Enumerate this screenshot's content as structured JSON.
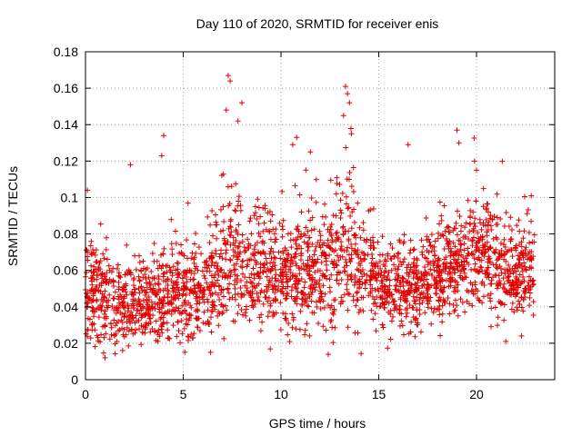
{
  "chart_data": {
    "type": "scatter",
    "title": "Day 110 of 2020, SRMTID for receiver enis",
    "xlabel": "GPS time / hours",
    "ylabel": "SRMTID / TECUs",
    "xlim": [
      0,
      24
    ],
    "ylim": [
      0,
      0.18
    ],
    "xticks": [
      "0",
      "5",
      "10",
      "15",
      "20"
    ],
    "xtick_values": [
      0,
      5,
      10,
      15,
      20
    ],
    "yticks": [
      "0",
      "0.02",
      "0.04",
      "0.06",
      "0.08",
      "0.1",
      "0.12",
      "0.14",
      "0.16",
      "0.18"
    ],
    "ytick_values": [
      0,
      0.02,
      0.04,
      0.06,
      0.08,
      0.1,
      0.12,
      0.14,
      0.16,
      0.18
    ],
    "grid": true,
    "marker": "+",
    "color": "#e00000",
    "x_data_range": [
      0,
      23
    ],
    "series": [
      {
        "name": "SRMTID",
        "envelope_hours": [
          0,
          1,
          2,
          3,
          4,
          5,
          6,
          7,
          7.5,
          8,
          9,
          10,
          11,
          12,
          13,
          13.5,
          14,
          15,
          16,
          17,
          18,
          19,
          20,
          21,
          22,
          23
        ],
        "typical_level": [
          0.05,
          0.045,
          0.04,
          0.042,
          0.045,
          0.045,
          0.05,
          0.06,
          0.065,
          0.06,
          0.062,
          0.055,
          0.058,
          0.06,
          0.065,
          0.07,
          0.06,
          0.055,
          0.05,
          0.052,
          0.058,
          0.06,
          0.07,
          0.06,
          0.055,
          0.065
        ],
        "spread": [
          0.02,
          0.02,
          0.018,
          0.018,
          0.02,
          0.02,
          0.02,
          0.025,
          0.03,
          0.025,
          0.022,
          0.022,
          0.025,
          0.025,
          0.03,
          0.035,
          0.025,
          0.022,
          0.02,
          0.02,
          0.022,
          0.022,
          0.022,
          0.025,
          0.02,
          0.02
        ],
        "peaks": [
          {
            "x": 0.1,
            "y": 0.104
          },
          {
            "x": 2.3,
            "y": 0.118
          },
          {
            "x": 4.0,
            "y": 0.134
          },
          {
            "x": 3.9,
            "y": 0.123
          },
          {
            "x": 7.3,
            "y": 0.167
          },
          {
            "x": 7.4,
            "y": 0.164
          },
          {
            "x": 7.2,
            "y": 0.148
          },
          {
            "x": 8.0,
            "y": 0.152
          },
          {
            "x": 7.8,
            "y": 0.142
          },
          {
            "x": 10.8,
            "y": 0.133
          },
          {
            "x": 10.6,
            "y": 0.129
          },
          {
            "x": 11.5,
            "y": 0.125
          },
          {
            "x": 13.3,
            "y": 0.161
          },
          {
            "x": 13.4,
            "y": 0.157
          },
          {
            "x": 13.5,
            "y": 0.152
          },
          {
            "x": 13.2,
            "y": 0.145
          },
          {
            "x": 13.6,
            "y": 0.135
          },
          {
            "x": 16.5,
            "y": 0.129
          },
          {
            "x": 19.0,
            "y": 0.137
          },
          {
            "x": 19.1,
            "y": 0.13
          },
          {
            "x": 19.9,
            "y": 0.12
          },
          {
            "x": 20.0,
            "y": 0.115
          },
          {
            "x": 22.8,
            "y": 0.101
          },
          {
            "x": 1.0,
            "y": 0.012
          },
          {
            "x": 1.9,
            "y": 0.016
          },
          {
            "x": 6.4,
            "y": 0.015
          },
          {
            "x": 21.5,
            "y": 0.021
          },
          {
            "x": 22.3,
            "y": 0.024
          }
        ]
      }
    ]
  }
}
